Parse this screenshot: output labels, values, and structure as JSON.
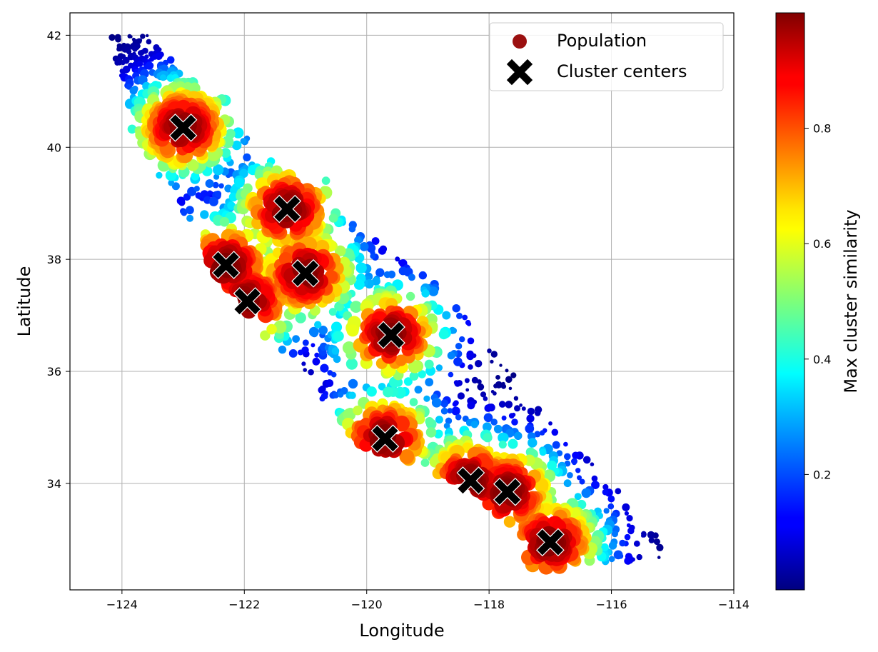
{
  "chart_data": {
    "type": "scatter",
    "xlabel": "Longitude",
    "ylabel": "Latitude",
    "xlim": [
      -124.85,
      -114.0
    ],
    "ylim": [
      32.1,
      42.4
    ],
    "xticks": [
      -124,
      -122,
      -120,
      -118,
      -116,
      -114
    ],
    "xtick_labels": [
      "−124",
      "−122",
      "−120",
      "−118",
      "−116",
      "−114"
    ],
    "yticks": [
      34,
      36,
      38,
      40,
      42
    ],
    "ytick_labels": [
      "34",
      "36",
      "38",
      "40",
      "42"
    ],
    "grid": true,
    "legend": {
      "placement": "top-right",
      "entries": [
        "Population",
        "Cluster centers"
      ]
    },
    "series": [
      {
        "name": "Population",
        "marker": "circle",
        "size_encodes": "population",
        "color_encodes": "max cluster similarity"
      },
      {
        "name": "Cluster centers",
        "marker": "X",
        "color": "#000000"
      }
    ],
    "cluster_centers": [
      {
        "x": -123.0,
        "y": 40.35
      },
      {
        "x": -121.3,
        "y": 38.9
      },
      {
        "x": -122.3,
        "y": 37.9
      },
      {
        "x": -121.0,
        "y": 37.75
      },
      {
        "x": -121.95,
        "y": 37.25
      },
      {
        "x": -119.6,
        "y": 36.65
      },
      {
        "x": -119.7,
        "y": 34.8
      },
      {
        "x": -118.3,
        "y": 34.05
      },
      {
        "x": -117.7,
        "y": 33.85
      },
      {
        "x": -117.0,
        "y": 32.95
      }
    ],
    "colorbar": {
      "label": "Max cluster similarity",
      "colormap": "jet",
      "range": [
        0.0,
        1.0
      ],
      "ticks": [
        0.2,
        0.4,
        0.6,
        0.8
      ],
      "tick_labels": [
        "0.2",
        "0.4",
        "0.6",
        "0.8"
      ]
    }
  },
  "colors": {
    "legend_population_marker": "#9b1010",
    "cluster_center": "#000000",
    "grid": "#b0b0b0"
  }
}
